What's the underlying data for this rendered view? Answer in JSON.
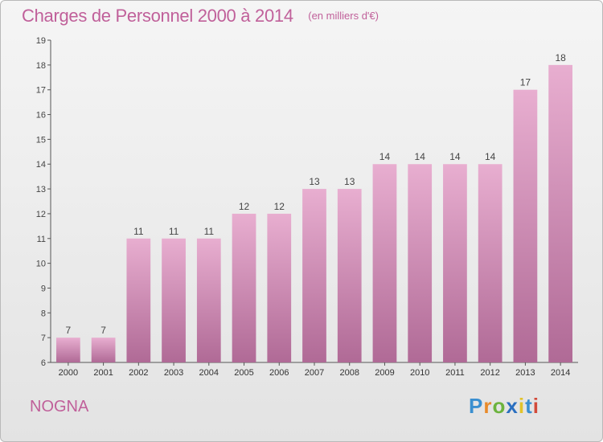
{
  "title": "Charges de Personnel 2000 à 2014",
  "subtitle": "(en milliers d'€)",
  "place": "NOGNA",
  "logo": {
    "text": "Proxiti",
    "parts": [
      "P",
      "r",
      "o",
      "x",
      "i",
      "t",
      "i"
    ]
  },
  "colors": {
    "accent": "#c0609a",
    "bar_top": "#e8aed0",
    "bar_bottom": "#b06a96"
  },
  "chart_data": {
    "type": "bar",
    "title": "Charges de Personnel 2000 à 2014",
    "subtitle": "(en milliers d'€)",
    "xlabel": "",
    "ylabel": "",
    "categories": [
      "2000",
      "2001",
      "2002",
      "2003",
      "2004",
      "2005",
      "2006",
      "2007",
      "2008",
      "2009",
      "2010",
      "2011",
      "2012",
      "2013",
      "2014"
    ],
    "values": [
      7,
      7,
      11,
      11,
      11,
      12,
      12,
      13,
      13,
      14,
      14,
      14,
      14,
      17,
      18
    ],
    "ylim": [
      6,
      19
    ],
    "yticks": [
      6,
      7,
      8,
      9,
      10,
      11,
      12,
      13,
      14,
      15,
      16,
      17,
      18,
      19
    ],
    "grid": false,
    "data_labels": true
  }
}
